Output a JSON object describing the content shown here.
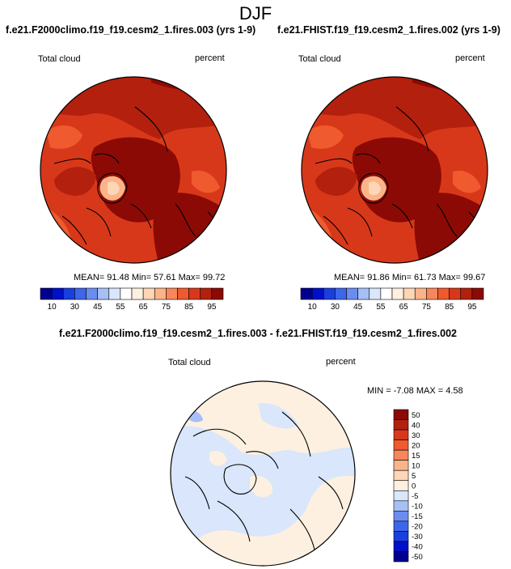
{
  "title": "DJF",
  "panels": [
    {
      "title": "f.e21.F2000climo.f19_f19.cesm2_1.fires.003 (yrs 1-9)",
      "variable": "Total cloud",
      "units": "percent",
      "stats": "MEAN=  91.48  Min=  57.61  Max=  99.72"
    },
    {
      "title": "f.e21.FHIST.f19_f19.cesm2_1.fires.002 (yrs 1-9)",
      "variable": "Total cloud",
      "units": "percent",
      "stats": "MEAN=  91.86  Min=  61.73  Max=  99.67"
    }
  ],
  "horizontal_colorbar": {
    "labels": [
      "10",
      "30",
      "45",
      "55",
      "65",
      "75",
      "85",
      "95"
    ],
    "colors": [
      "#00008f",
      "#0010c8",
      "#1a3fe0",
      "#3d66ea",
      "#6b8df0",
      "#a7bff7",
      "#d9e6fb",
      "#ffffff",
      "#fdf0e0",
      "#fcd6b6",
      "#fbb48a",
      "#f7875a",
      "#ef5a2f",
      "#d8381a",
      "#b3200d",
      "#8c0a05"
    ]
  },
  "difference_panel": {
    "title": "f.e21.F2000climo.f19_f19.cesm2_1.fires.003 - f.e21.FHIST.f19_f19.cesm2_1.fires.002",
    "variable": "Total cloud",
    "units": "percent",
    "stats": "MIN =  -7.08 MAX =   4.58"
  },
  "vertical_colorbar": {
    "labels": [
      "50",
      "40",
      "30",
      "20",
      "15",
      "10",
      "5",
      "0",
      "-5",
      "-10",
      "-15",
      "-20",
      "-30",
      "-40",
      "-50"
    ],
    "colors": [
      "#8c0a05",
      "#b3200d",
      "#d8381a",
      "#ef5a2f",
      "#f7875a",
      "#fbb48a",
      "#fcd6b6",
      "#fdf0e0",
      "#d9e6fb",
      "#a7bff7",
      "#6b8df0",
      "#3d66ea",
      "#1a3fe0",
      "#0010c8",
      "#00008f"
    ]
  },
  "map_colors": {
    "deep_red": "#8c0a05",
    "red": "#b3200d",
    "orange_red": "#d8381a",
    "orange": "#ef5a2f",
    "light_orange": "#f7875a",
    "peach": "#fbb48a",
    "diff_positive": "#fdf0e0",
    "diff_negative": "#d9e6fb"
  }
}
